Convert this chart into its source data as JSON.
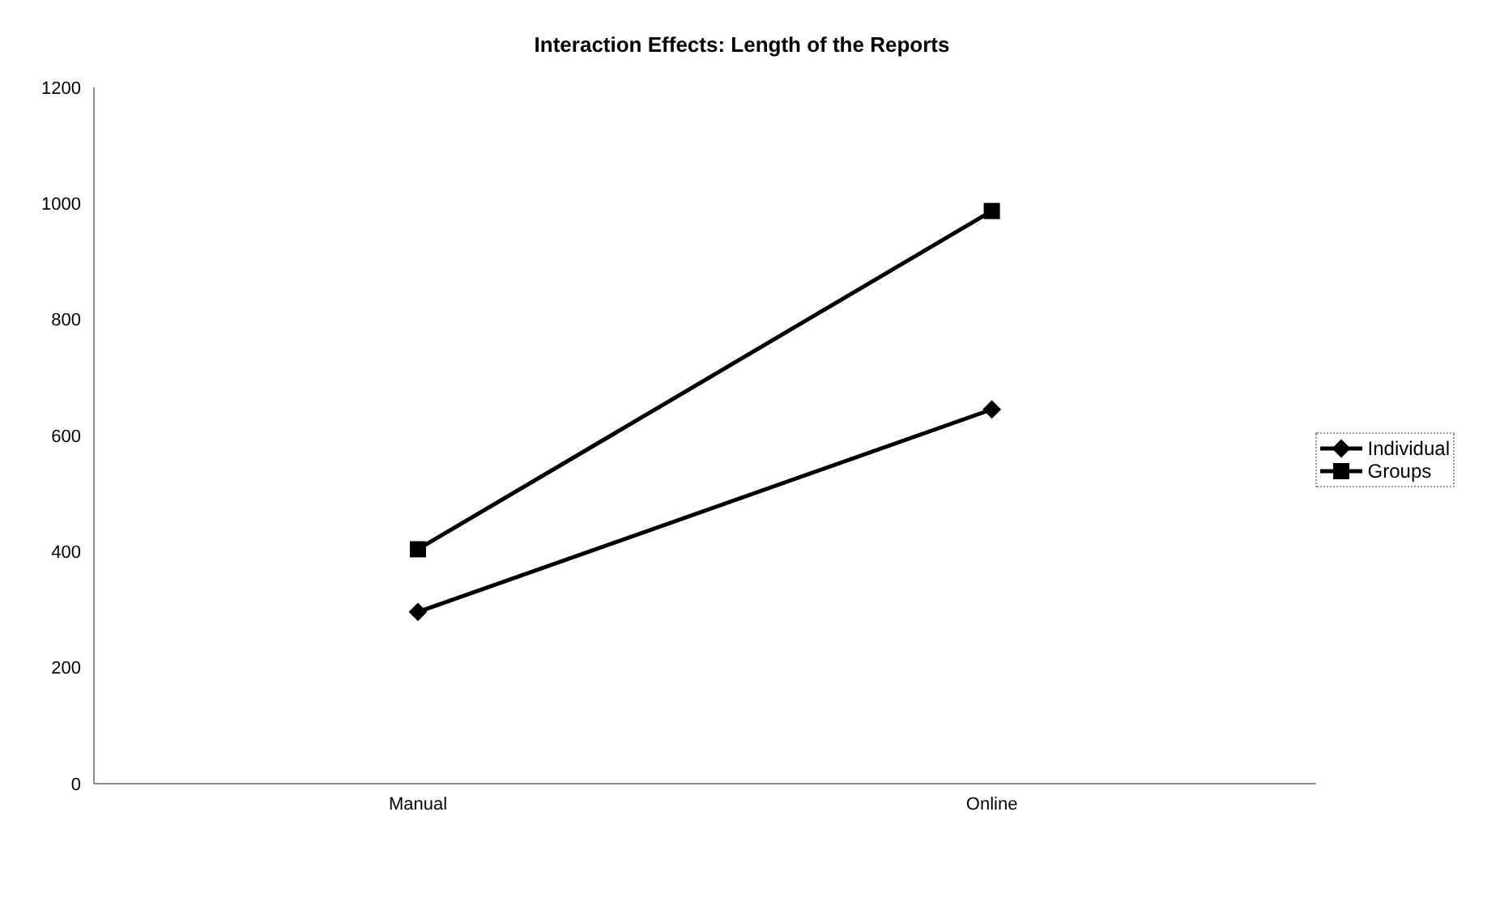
{
  "chart_data": {
    "type": "line",
    "title": "Interaction Effects: Length of the Reports",
    "categories": [
      "Manual",
      "Online"
    ],
    "series": [
      {
        "name": "Individual",
        "color": "#000000",
        "values": [
          296,
          645
        ],
        "marker": "diamond"
      },
      {
        "name": "Groups",
        "color": "#000000",
        "values": [
          404,
          987
        ],
        "marker": "square"
      }
    ],
    "ylim": [
      0,
      1200
    ],
    "yticks": [
      0,
      200,
      400,
      600,
      800,
      1000,
      1200
    ],
    "grid": false,
    "legend": "right",
    "line_style": "solid"
  }
}
